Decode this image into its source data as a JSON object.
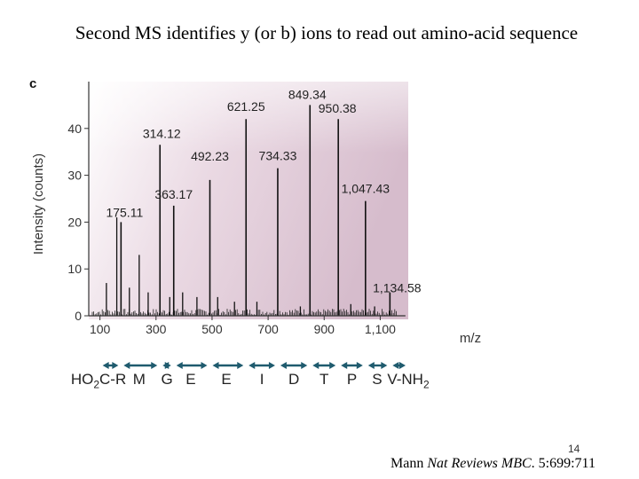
{
  "title": "Second MS identifies y (or b) ions to read out amino-acid sequence",
  "panel_letter": "c",
  "slide_number": "14",
  "citation": {
    "author": "Mann",
    "journal": "Nat Reviews MBC",
    "ref": ". 5:699:711"
  },
  "colors": {
    "bg_light": "#ffffff",
    "bg_pink": "#ddc6d4",
    "peak": "#111111",
    "arrow": "#1f5b6e"
  },
  "chart_data": {
    "type": "bar",
    "title": "",
    "xlabel": "m/z",
    "ylabel": "Intensity (counts)",
    "xlim": [
      60,
      1200
    ],
    "ylim": [
      0,
      50
    ],
    "xticks": [
      {
        "value": 100,
        "label": "100"
      },
      {
        "value": 300,
        "label": "300"
      },
      {
        "value": 500,
        "label": "500"
      },
      {
        "value": 700,
        "label": "700"
      },
      {
        "value": 900,
        "label": "900"
      },
      {
        "value": 1100,
        "label": "1,100"
      }
    ],
    "yticks": [
      {
        "value": 0,
        "label": "0"
      },
      {
        "value": 10,
        "label": "10"
      },
      {
        "value": 20,
        "label": "20"
      },
      {
        "value": 30,
        "label": "30"
      },
      {
        "value": 40,
        "label": "40"
      }
    ],
    "peaks": [
      {
        "mz": 175.11,
        "intensity": 20,
        "label": "175.11"
      },
      {
        "mz": 314.12,
        "intensity": 36.5,
        "label": "314.12"
      },
      {
        "mz": 363.17,
        "intensity": 23.5,
        "label": "363.17"
      },
      {
        "mz": 492.23,
        "intensity": 29,
        "label": "492.23"
      },
      {
        "mz": 621.25,
        "intensity": 42,
        "label": "621.25"
      },
      {
        "mz": 734.33,
        "intensity": 31.5,
        "label": "734.33"
      },
      {
        "mz": 849.34,
        "intensity": 45,
        "label": "849.34"
      },
      {
        "mz": 950.38,
        "intensity": 42,
        "label": "950.38"
      },
      {
        "mz": 1047.43,
        "intensity": 24.5,
        "label": "1,047.43"
      },
      {
        "mz": 1134.58,
        "intensity": 5,
        "label": "1,134.58"
      }
    ],
    "minor_peaks": [
      {
        "mz": 160,
        "intensity": 21
      },
      {
        "mz": 240,
        "intensity": 13
      },
      {
        "mz": 205,
        "intensity": 6
      },
      {
        "mz": 123,
        "intensity": 7
      },
      {
        "mz": 272,
        "intensity": 5
      },
      {
        "mz": 349,
        "intensity": 4
      },
      {
        "mz": 395,
        "intensity": 5
      },
      {
        "mz": 446,
        "intensity": 4
      },
      {
        "mz": 520,
        "intensity": 4
      },
      {
        "mz": 580,
        "intensity": 3
      },
      {
        "mz": 660,
        "intensity": 3
      },
      {
        "mz": 815,
        "intensity": 2
      },
      {
        "mz": 995,
        "intensity": 2.5
      },
      {
        "mz": 1080,
        "intensity": 2
      }
    ],
    "sequence": [
      {
        "label": "HO2C-R",
        "mz": 95
      },
      {
        "label": "M",
        "mz": 240
      },
      {
        "label": "G",
        "mz": 339
      },
      {
        "label": "E",
        "mz": 424
      },
      {
        "label": "E",
        "mz": 551
      },
      {
        "label": "I",
        "mz": 678
      },
      {
        "label": "D",
        "mz": 792
      },
      {
        "label": "T",
        "mz": 900
      },
      {
        "label": "P",
        "mz": 999
      },
      {
        "label": "S",
        "mz": 1089
      },
      {
        "label": "V-NH2",
        "mz": 1200
      }
    ],
    "sequence_boundaries": [
      175.11,
      314.12,
      363.17,
      492.23,
      621.25,
      734.33,
      849.34,
      950.38,
      1047.43,
      1134.58
    ]
  }
}
